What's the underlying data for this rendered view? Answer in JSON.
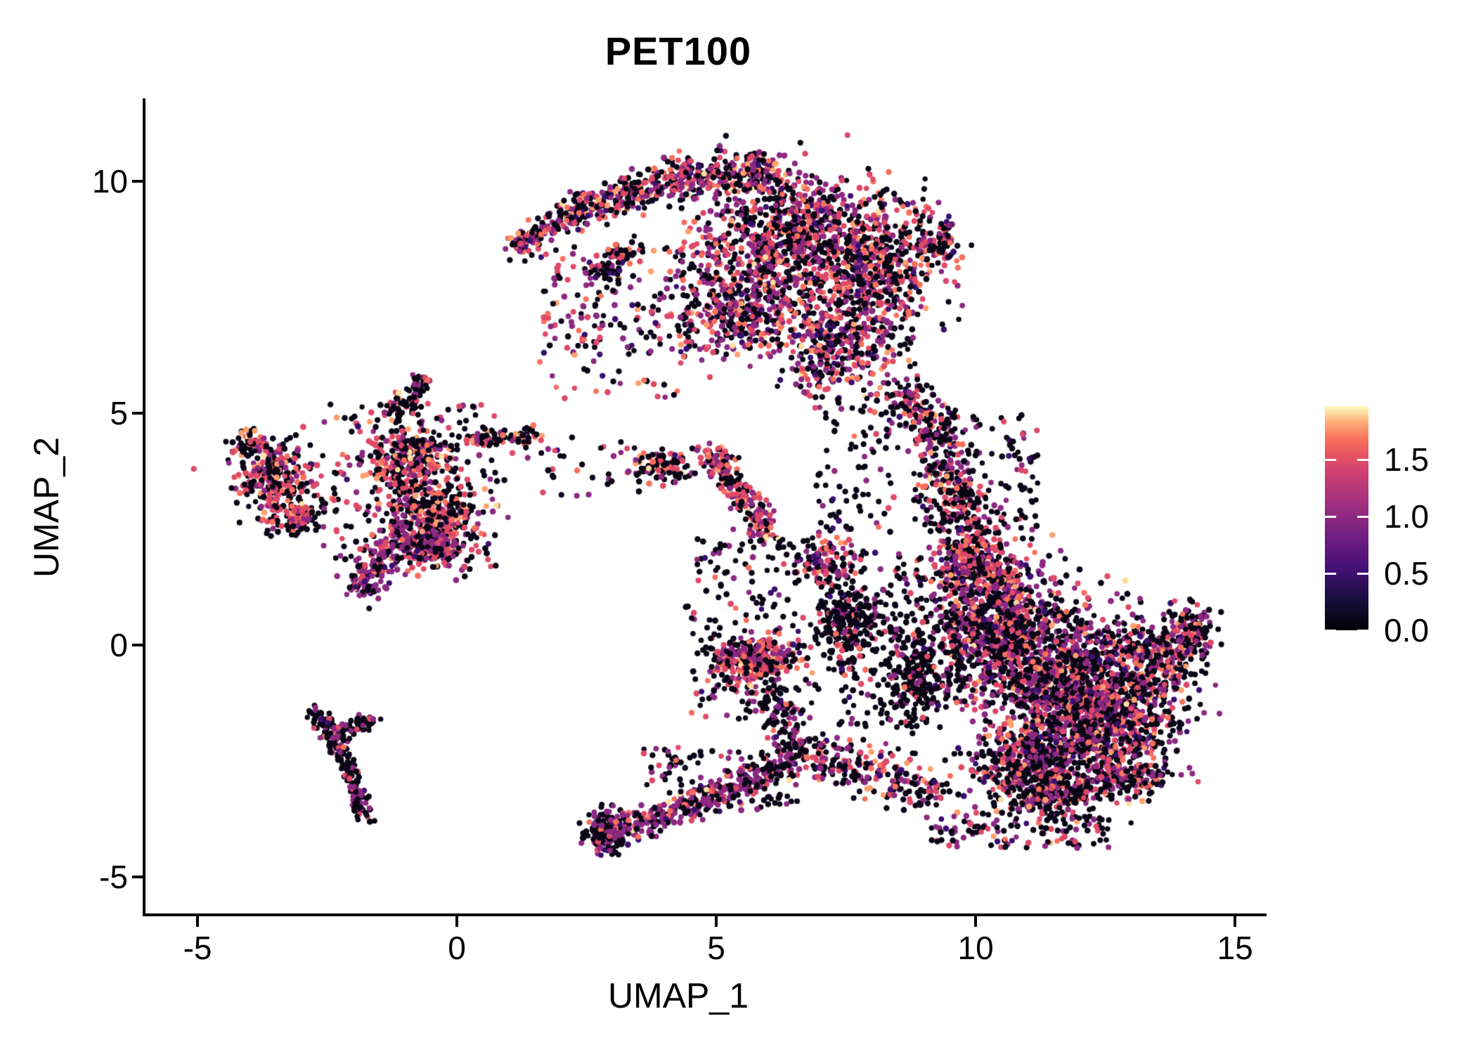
{
  "title": "PET100",
  "axes": {
    "x": {
      "label": "UMAP_1",
      "tick_labels": [
        "-5",
        "0",
        "5",
        "10",
        "15"
      ],
      "tick_values": [
        -5,
        0,
        5,
        10,
        15
      ],
      "domain": [
        -6.03,
        15.58
      ]
    },
    "y": {
      "label": "UMAP_2",
      "tick_labels": [
        "10",
        "5",
        "0",
        "-5"
      ],
      "tick_values": [
        10,
        5,
        0,
        -5
      ],
      "domain": [
        -5.82,
        11.79
      ]
    }
  },
  "colorbar": {
    "tick_labels": [
      "1.5",
      "1.0",
      "0.5",
      "0.0"
    ],
    "tick_values": [
      1.5,
      1.0,
      0.5,
      0.0
    ],
    "domain": [
      0,
      1.97
    ],
    "colormap": "magma",
    "stops": [
      {
        "o": 0.0,
        "c": "#000004"
      },
      {
        "o": 0.14,
        "c": "#180f3e"
      },
      {
        "o": 0.28,
        "c": "#451077"
      },
      {
        "o": 0.42,
        "c": "#721f81"
      },
      {
        "o": 0.56,
        "c": "#9f2f7f"
      },
      {
        "o": 0.7,
        "c": "#cd4071"
      },
      {
        "o": 0.78,
        "c": "#e75263"
      },
      {
        "o": 0.86,
        "c": "#f8765c"
      },
      {
        "o": 0.93,
        "c": "#feae77"
      },
      {
        "o": 1.0,
        "c": "#fcfdbf"
      }
    ]
  },
  "chart_data": {
    "type": "scatter",
    "title": "PET100",
    "xlabel": "UMAP_1",
    "ylabel": "UMAP_2",
    "xlim": [
      -6.03,
      15.58
    ],
    "ylim": [
      -5.82,
      11.79
    ],
    "legend_title_values": [
      0.0,
      0.5,
      1.0,
      1.5
    ],
    "n_points_total": 12680,
    "point_radius_px": 4,
    "seed": 1337,
    "palette": {
      "black": "#0a0616",
      "dkpurple": "#3b0f70",
      "purple": "#8c2981",
      "pink": "#de4968",
      "salmon": "#f7705c",
      "orange": "#fe9f6d",
      "pale": "#fddea0"
    },
    "mixes": {
      "default": {
        "black": 0.4,
        "dkpurple": 0.07,
        "purple": 0.23,
        "pink": 0.17,
        "salmon": 0.08,
        "orange": 0.04,
        "pale": 0.01
      },
      "blob": {
        "black": 0.47,
        "dkpurple": 0.06,
        "purple": 0.24,
        "pink": 0.13,
        "salmon": 0.06,
        "orange": 0.03,
        "pale": 0.01
      },
      "blackish": {
        "black": 0.72,
        "dkpurple": 0.04,
        "purple": 0.14,
        "pink": 0.07,
        "salmon": 0.03
      },
      "purpleheavy": {
        "black": 0.27,
        "dkpurple": 0.04,
        "purple": 0.5,
        "pink": 0.13,
        "salmon": 0.05,
        "pale": 0.01
      },
      "pinkheavy": {
        "black": 0.26,
        "purple": 0.3,
        "pink": 0.28,
        "salmon": 0.1,
        "orange": 0.04,
        "pale": 0.02
      },
      "leftmix": {
        "black": 0.48,
        "dkpurple": 0.01,
        "purple": 0.14,
        "pink": 0.22,
        "salmon": 0.09,
        "orange": 0.05,
        "pale": 0.01
      },
      "darkmix": {
        "black": 0.58,
        "dkpurple": 0.04,
        "purple": 0.26,
        "pink": 0.09,
        "salmon": 0.03
      }
    },
    "clusters": [
      {
        "name": "top-arc-left",
        "type": "strand",
        "x1": 1.05,
        "y1": 8.55,
        "x2": 2.3,
        "y2": 9.35,
        "w": 0.28,
        "n": 130,
        "mix": "default"
      },
      {
        "name": "top-arc-mid",
        "type": "strand",
        "x1": 2.3,
        "y1": 9.35,
        "x2": 4.1,
        "y2": 10.05,
        "w": 0.38,
        "n": 240,
        "mix": "default"
      },
      {
        "name": "top-arc-crest",
        "type": "strand",
        "x1": 4.1,
        "y1": 10.05,
        "x2": 6.2,
        "y2": 10.2,
        "w": 0.45,
        "n": 280,
        "mix": "default"
      },
      {
        "name": "top-mass-1",
        "type": "gauss",
        "cx": 6.3,
        "cy": 8.9,
        "rx": 1.7,
        "ry": 1.4,
        "n": 780,
        "mix": "default"
      },
      {
        "name": "top-mass-2",
        "type": "gauss",
        "cx": 8.0,
        "cy": 8.1,
        "rx": 1.15,
        "ry": 1.6,
        "n": 620,
        "mix": "default"
      },
      {
        "name": "top-mass-3",
        "type": "gauss",
        "cx": 5.6,
        "cy": 7.3,
        "rx": 1.25,
        "ry": 1.05,
        "n": 400,
        "mix": "default"
      },
      {
        "name": "top-mass-4",
        "type": "gauss",
        "cx": 7.3,
        "cy": 6.4,
        "rx": 1.05,
        "ry": 1.05,
        "n": 320,
        "mix": "default"
      },
      {
        "name": "top-right-bump",
        "type": "gauss",
        "cx": 9.3,
        "cy": 8.75,
        "rx": 0.45,
        "ry": 0.55,
        "n": 90,
        "mix": "default"
      },
      {
        "name": "top-sparse-wedge",
        "type": "rect",
        "x1": 1.6,
        "y1": 6.3,
        "x2": 5.2,
        "y2": 8.6,
        "n": 170,
        "mix": "default"
      },
      {
        "name": "top-inner-streak",
        "type": "strand",
        "x1": 2.6,
        "y1": 7.9,
        "x2": 3.4,
        "y2": 8.6,
        "w": 0.3,
        "n": 70,
        "mix": "default"
      },
      {
        "name": "neck-upper",
        "type": "strand",
        "x1": 8.6,
        "y1": 5.7,
        "x2": 9.6,
        "y2": 3.5,
        "w": 0.55,
        "n": 240,
        "mix": "default"
      },
      {
        "name": "neck-lower",
        "type": "strand",
        "x1": 9.6,
        "y1": 3.5,
        "x2": 9.95,
        "y2": 1.8,
        "w": 0.6,
        "n": 220,
        "mix": "default"
      },
      {
        "name": "neck-fan-right",
        "type": "rect",
        "x1": 8.8,
        "y1": 2.4,
        "x2": 11.2,
        "y2": 5.0,
        "n": 150,
        "mix": "blackish"
      },
      {
        "name": "neck-fan-left",
        "type": "rect",
        "x1": 6.9,
        "y1": 2.4,
        "x2": 8.6,
        "y2": 5.4,
        "n": 90,
        "mix": "blackish"
      },
      {
        "name": "blob-core-1",
        "type": "gauss",
        "cx": 10.3,
        "cy": 0.4,
        "rx": 1.25,
        "ry": 1.4,
        "n": 760,
        "mix": "blob"
      },
      {
        "name": "blob-core-2",
        "type": "gauss",
        "cx": 11.6,
        "cy": -0.6,
        "rx": 1.5,
        "ry": 1.5,
        "n": 950,
        "mix": "blob"
      },
      {
        "name": "blob-core-3",
        "type": "gauss",
        "cx": 12.6,
        "cy": -1.6,
        "rx": 1.3,
        "ry": 1.15,
        "n": 680,
        "mix": "blob"
      },
      {
        "name": "blob-core-4",
        "type": "gauss",
        "cx": 11.2,
        "cy": -2.4,
        "rx": 1.3,
        "ry": 0.9,
        "n": 500,
        "mix": "blob"
      },
      {
        "name": "blob-right",
        "type": "gauss",
        "cx": 13.5,
        "cy": -0.3,
        "rx": 0.95,
        "ry": 0.9,
        "n": 300,
        "mix": "blob"
      },
      {
        "name": "blob-right-tip",
        "type": "gauss",
        "cx": 14.15,
        "cy": 0.25,
        "rx": 0.5,
        "ry": 0.6,
        "n": 110,
        "mix": "blob"
      },
      {
        "name": "blob-top-band",
        "type": "gauss",
        "cx": 10.0,
        "cy": 1.5,
        "rx": 0.95,
        "ry": 0.65,
        "n": 240,
        "mix": "default"
      },
      {
        "name": "blob-left-edge",
        "type": "gauss",
        "cx": 9.0,
        "cy": -0.6,
        "rx": 0.85,
        "ry": 1.1,
        "n": 260,
        "mix": "blackish"
      },
      {
        "name": "blob-bottom-1",
        "type": "gauss",
        "cx": 11.4,
        "cy": -3.2,
        "rx": 1.2,
        "ry": 0.6,
        "n": 260,
        "mix": "blob"
      },
      {
        "name": "blob-bottom-2",
        "type": "gauss",
        "cx": 12.9,
        "cy": -2.8,
        "rx": 0.8,
        "ry": 0.5,
        "n": 170,
        "mix": "blob"
      },
      {
        "name": "blob-halo-left",
        "type": "rect",
        "x1": 7.3,
        "y1": -1.8,
        "x2": 9.0,
        "y2": 2.0,
        "n": 170,
        "mix": "blackish"
      },
      {
        "name": "blob-bottom-strand",
        "type": "strand",
        "x1": 6.8,
        "y1": -2.4,
        "x2": 9.3,
        "y2": -3.2,
        "w": 0.5,
        "n": 220,
        "mix": "default"
      },
      {
        "name": "blob-bottom-fringe",
        "type": "rect",
        "x1": 9.0,
        "y1": -4.4,
        "x2": 12.6,
        "y2": -3.6,
        "n": 120,
        "mix": "blob"
      },
      {
        "name": "farleft-core",
        "type": "gauss",
        "cx": -3.5,
        "cy": 3.6,
        "rx": 0.8,
        "ry": 0.75,
        "n": 260,
        "mix": "leftmix"
      },
      {
        "name": "farleft-tip",
        "type": "gauss",
        "cx": -4.0,
        "cy": 4.35,
        "rx": 0.35,
        "ry": 0.3,
        "n": 60,
        "mix": "leftmix"
      },
      {
        "name": "farleft-lower",
        "type": "gauss",
        "cx": -3.1,
        "cy": 2.75,
        "rx": 0.5,
        "ry": 0.4,
        "n": 110,
        "mix": "leftmix"
      },
      {
        "name": "midleft-upper",
        "type": "gauss",
        "cx": -0.9,
        "cy": 3.9,
        "rx": 0.95,
        "ry": 0.95,
        "n": 340,
        "mix": "leftmix"
      },
      {
        "name": "midleft-lower",
        "type": "gauss",
        "cx": -0.4,
        "cy": 2.6,
        "rx": 0.85,
        "ry": 0.9,
        "n": 340,
        "mix": "leftmix"
      },
      {
        "name": "midleft-purpleclump",
        "type": "gauss",
        "cx": -0.5,
        "cy": 2.1,
        "rx": 0.4,
        "ry": 0.3,
        "n": 130,
        "mix": "purpleheavy"
      },
      {
        "name": "midleft-strand",
        "type": "strand",
        "x1": -1.95,
        "y1": 1.15,
        "x2": -0.95,
        "y2": 2.6,
        "w": 0.4,
        "n": 200,
        "mix": "purpleheavy"
      },
      {
        "name": "midleft-trail",
        "type": "strand",
        "x1": 0.2,
        "y1": 4.45,
        "x2": 1.65,
        "y2": 4.5,
        "w": 0.22,
        "n": 80,
        "mix": "leftmix"
      },
      {
        "name": "midleft-topspur",
        "type": "strand",
        "x1": -1.3,
        "y1": 5.0,
        "x2": -0.55,
        "y2": 5.75,
        "w": 0.3,
        "n": 80,
        "mix": "leftmix"
      },
      {
        "name": "midleft-scatter",
        "type": "rect",
        "x1": -2.6,
        "y1": 1.6,
        "x2": 0.8,
        "y2": 5.2,
        "n": 170,
        "mix": "leftmix"
      },
      {
        "name": "ystrand-arm1",
        "type": "strand",
        "x1": -2.75,
        "y1": -1.35,
        "x2": -2.1,
        "y2": -2.6,
        "w": 0.22,
        "n": 100,
        "mix": "darkmix"
      },
      {
        "name": "ystrand-arm2",
        "type": "strand",
        "x1": -2.1,
        "y1": -2.6,
        "x2": -1.75,
        "y2": -3.8,
        "w": 0.2,
        "n": 85,
        "mix": "darkmix"
      },
      {
        "name": "ystrand-branch",
        "type": "strand",
        "x1": -2.35,
        "y1": -2.0,
        "x2": -1.55,
        "y2": -1.55,
        "w": 0.18,
        "n": 55,
        "mix": "darkmix"
      },
      {
        "name": "center-small-a",
        "type": "gauss",
        "cx": 4.0,
        "cy": 3.85,
        "rx": 0.6,
        "ry": 0.42,
        "n": 110,
        "mix": "leftmix"
      },
      {
        "name": "center-strand-b",
        "type": "strand",
        "x1": 4.85,
        "y1": 4.2,
        "x2": 6.05,
        "y2": 2.3,
        "w": 0.3,
        "n": 240,
        "mix": "pinkheavy"
      },
      {
        "name": "center-group-c",
        "type": "gauss",
        "cx": 7.1,
        "cy": 1.8,
        "rx": 0.55,
        "ry": 0.6,
        "n": 120,
        "mix": "default"
      },
      {
        "name": "center-clump-d",
        "type": "gauss",
        "cx": 5.7,
        "cy": -0.35,
        "rx": 0.8,
        "ry": 0.5,
        "n": 340,
        "mix": "pinkheavy"
      },
      {
        "name": "center-d-tail",
        "type": "strand",
        "x1": 5.95,
        "y1": -1.0,
        "x2": 6.6,
        "y2": -2.3,
        "w": 0.35,
        "n": 110,
        "mix": "darkmix"
      },
      {
        "name": "center-d-scatter",
        "type": "rect",
        "x1": 4.5,
        "y1": -1.6,
        "x2": 7.0,
        "y2": 0.6,
        "n": 110,
        "mix": "blackish"
      },
      {
        "name": "center-black-e",
        "type": "gauss",
        "cx": 7.5,
        "cy": 0.45,
        "rx": 0.6,
        "ry": 0.85,
        "n": 230,
        "mix": "blackish"
      },
      {
        "name": "tail-tip-clump",
        "type": "gauss",
        "cx": 2.85,
        "cy": -4.05,
        "rx": 0.32,
        "ry": 0.42,
        "n": 200,
        "mix": "darkmix"
      },
      {
        "name": "tail-strand",
        "type": "strand",
        "x1": 3.1,
        "y1": -4.05,
        "x2": 6.7,
        "y2": -2.4,
        "w": 0.35,
        "n": 380,
        "mix": "purpleheavy"
      },
      {
        "name": "tail-scatter",
        "type": "rect",
        "x1": 3.5,
        "y1": -3.6,
        "x2": 6.6,
        "y2": -2.2,
        "n": 110,
        "mix": "blackish"
      },
      {
        "name": "sparse-upper-mid",
        "type": "rect",
        "x1": 1.5,
        "y1": 5.2,
        "x2": 4.6,
        "y2": 7.4,
        "n": 60,
        "mix": "default"
      },
      {
        "name": "sparse-mid",
        "type": "rect",
        "x1": 0.6,
        "y1": 3.2,
        "x2": 3.6,
        "y2": 4.6,
        "n": 40,
        "mix": "darkmix"
      },
      {
        "name": "sparse-center-gap",
        "type": "rect",
        "x1": 4.4,
        "y1": 0.6,
        "x2": 6.6,
        "y2": 2.3,
        "n": 80,
        "mix": "blackish"
      }
    ]
  }
}
